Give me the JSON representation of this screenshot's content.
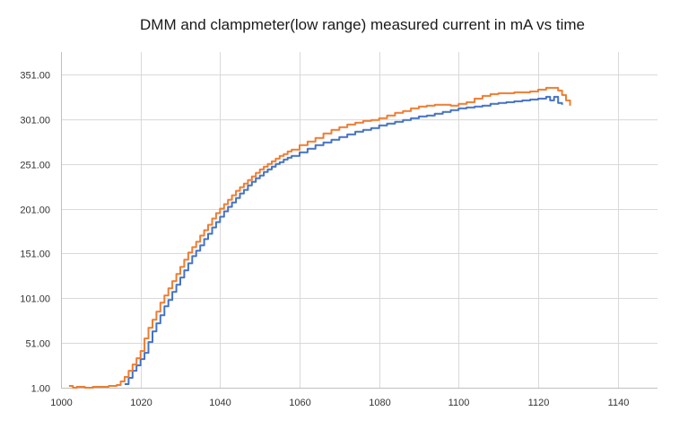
{
  "chart_data": {
    "type": "line",
    "title": "DMM and clampmeter(low range) measured current in mA vs time",
    "xlabel": "",
    "ylabel": "",
    "xlim": [
      1000,
      1150
    ],
    "ylim": [
      1.0,
      376.0
    ],
    "xticks": [
      1000,
      1020,
      1040,
      1060,
      1080,
      1100,
      1120,
      1140
    ],
    "yticks": [
      1.0,
      51.0,
      101.0,
      151.0,
      201.0,
      251.0,
      301.0,
      351.0
    ],
    "ytick_labels": [
      "1.00",
      "51.00",
      "101.00",
      "151.00",
      "201.00",
      "251.00",
      "301.00",
      "351.00"
    ],
    "grid": true,
    "legend": "none",
    "series": [
      {
        "color": "#4472C4",
        "step": true,
        "x": [
          1016,
          1017,
          1018,
          1019,
          1020,
          1021,
          1022,
          1023,
          1024,
          1025,
          1026,
          1027,
          1028,
          1029,
          1030,
          1031,
          1032,
          1033,
          1034,
          1035,
          1036,
          1037,
          1038,
          1039,
          1040,
          1041,
          1042,
          1043,
          1044,
          1045,
          1046,
          1047,
          1048,
          1049,
          1050,
          1051,
          1052,
          1053,
          1054,
          1055,
          1056,
          1057,
          1058,
          1060,
          1062,
          1064,
          1066,
          1068,
          1070,
          1072,
          1074,
          1076,
          1078,
          1080,
          1082,
          1084,
          1086,
          1088,
          1090,
          1092,
          1094,
          1096,
          1098,
          1100,
          1102,
          1104,
          1106,
          1108,
          1110,
          1112,
          1114,
          1116,
          1118,
          1120,
          1122,
          1123,
          1124,
          1125,
          1126
        ],
        "values": [
          5,
          12,
          20,
          26,
          33,
          40,
          52,
          64,
          73,
          82,
          92,
          99,
          108,
          116,
          124,
          132,
          140,
          148,
          154,
          160,
          167,
          173,
          180,
          186,
          192,
          198,
          203,
          208,
          213,
          218,
          222,
          227,
          231,
          235,
          238,
          242,
          245,
          248,
          251,
          253,
          256,
          258,
          260,
          264,
          268,
          272,
          275,
          278,
          281,
          284,
          287,
          289,
          291,
          294,
          296,
          298,
          300,
          302,
          304,
          305,
          307,
          309,
          311,
          313,
          314,
          315,
          316,
          318,
          319,
          320,
          321,
          322,
          323,
          324,
          326,
          322,
          326,
          319,
          317
        ]
      },
      {
        "color": "#ED7D31",
        "step": true,
        "x": [
          1002,
          1003,
          1004,
          1006,
          1008,
          1010,
          1012,
          1014,
          1015,
          1016,
          1017,
          1018,
          1019,
          1020,
          1021,
          1022,
          1023,
          1024,
          1025,
          1026,
          1027,
          1028,
          1029,
          1030,
          1031,
          1032,
          1033,
          1034,
          1035,
          1036,
          1037,
          1038,
          1039,
          1040,
          1041,
          1042,
          1043,
          1044,
          1045,
          1046,
          1047,
          1048,
          1049,
          1050,
          1051,
          1052,
          1053,
          1054,
          1055,
          1056,
          1057,
          1058,
          1060,
          1062,
          1064,
          1066,
          1068,
          1070,
          1072,
          1074,
          1076,
          1078,
          1080,
          1082,
          1084,
          1086,
          1088,
          1090,
          1092,
          1094,
          1096,
          1098,
          1100,
          1102,
          1104,
          1106,
          1108,
          1110,
          1112,
          1114,
          1116,
          1118,
          1120,
          1122,
          1124,
          1125,
          1126,
          1127,
          1128
        ],
        "values": [
          3,
          1,
          2,
          1,
          2,
          2,
          3,
          4,
          8,
          13,
          20,
          27,
          34,
          42,
          56,
          68,
          77,
          86,
          96,
          104,
          112,
          120,
          128,
          136,
          144,
          152,
          158,
          164,
          171,
          177,
          183,
          190,
          196,
          201,
          206,
          211,
          216,
          221,
          225,
          229,
          233,
          237,
          241,
          245,
          248,
          251,
          254,
          257,
          260,
          262,
          265,
          267,
          272,
          276,
          280,
          285,
          289,
          292,
          295,
          297,
          299,
          300,
          302,
          305,
          308,
          310,
          313,
          315,
          316,
          317,
          317,
          316,
          318,
          320,
          324,
          327,
          329,
          330,
          330,
          331,
          331,
          332,
          334,
          336,
          336,
          333,
          328,
          322,
          316
        ]
      }
    ]
  }
}
